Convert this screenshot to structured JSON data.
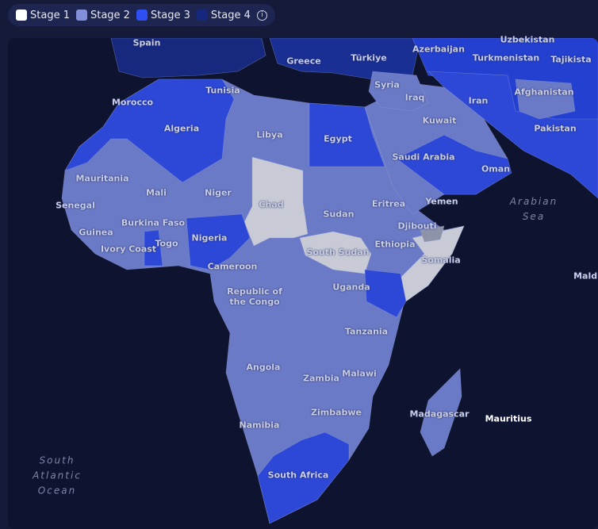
{
  "legend": {
    "items": [
      {
        "label": "Stage 1",
        "color": "#ffffff"
      },
      {
        "label": "Stage 2",
        "color": "#8290dc"
      },
      {
        "label": "Stage 3",
        "color": "#2e4ff2"
      },
      {
        "label": "Stage 4",
        "color": "#15287e"
      }
    ]
  },
  "map": {
    "labels": [
      {
        "name": "Spain"
      },
      {
        "name": "Greece"
      },
      {
        "name": "Türkiye"
      },
      {
        "name": "Azerbaijan"
      },
      {
        "name": "Uzbekistan"
      },
      {
        "name": "Turkmenistan"
      },
      {
        "name": "Tajikista"
      },
      {
        "name": "Syria"
      },
      {
        "name": "Iraq"
      },
      {
        "name": "Iran"
      },
      {
        "name": "Afghanistan"
      },
      {
        "name": "Tunisia"
      },
      {
        "name": "Morocco"
      },
      {
        "name": "Kuwait"
      },
      {
        "name": "Pakistan"
      },
      {
        "name": "Algeria"
      },
      {
        "name": "Libya"
      },
      {
        "name": "Egypt"
      },
      {
        "name": "Saudi Arabia"
      },
      {
        "name": "Oman"
      },
      {
        "name": "Mauritania"
      },
      {
        "name": "Mali"
      },
      {
        "name": "Niger"
      },
      {
        "name": "Chad"
      },
      {
        "name": "Sudan"
      },
      {
        "name": "Eritrea"
      },
      {
        "name": "Yemen"
      },
      {
        "name": "Senegal"
      },
      {
        "name": "Djibouti"
      },
      {
        "name": "Burkina Faso"
      },
      {
        "name": "Guinea"
      },
      {
        "name": "Nigeria"
      },
      {
        "name": "Ethiopia"
      },
      {
        "name": "Togo"
      },
      {
        "name": "Ivory Coast"
      },
      {
        "name": "South Sudan"
      },
      {
        "name": "Somalia"
      },
      {
        "name": "Cameroon"
      },
      {
        "name": "Republic of the Congo"
      },
      {
        "name": "Uganda"
      },
      {
        "name": "Tanzania"
      },
      {
        "name": "Angola"
      },
      {
        "name": "Malawi"
      },
      {
        "name": "Zambia"
      },
      {
        "name": "Zimbabwe"
      },
      {
        "name": "Madagascar"
      },
      {
        "name": "Mauritius"
      },
      {
        "name": "Namibia"
      },
      {
        "name": "South Africa"
      },
      {
        "name": "Maldi"
      }
    ],
    "seas": [
      {
        "name": "Arabian Sea"
      },
      {
        "name": "South Atlantic Ocean"
      }
    ]
  }
}
